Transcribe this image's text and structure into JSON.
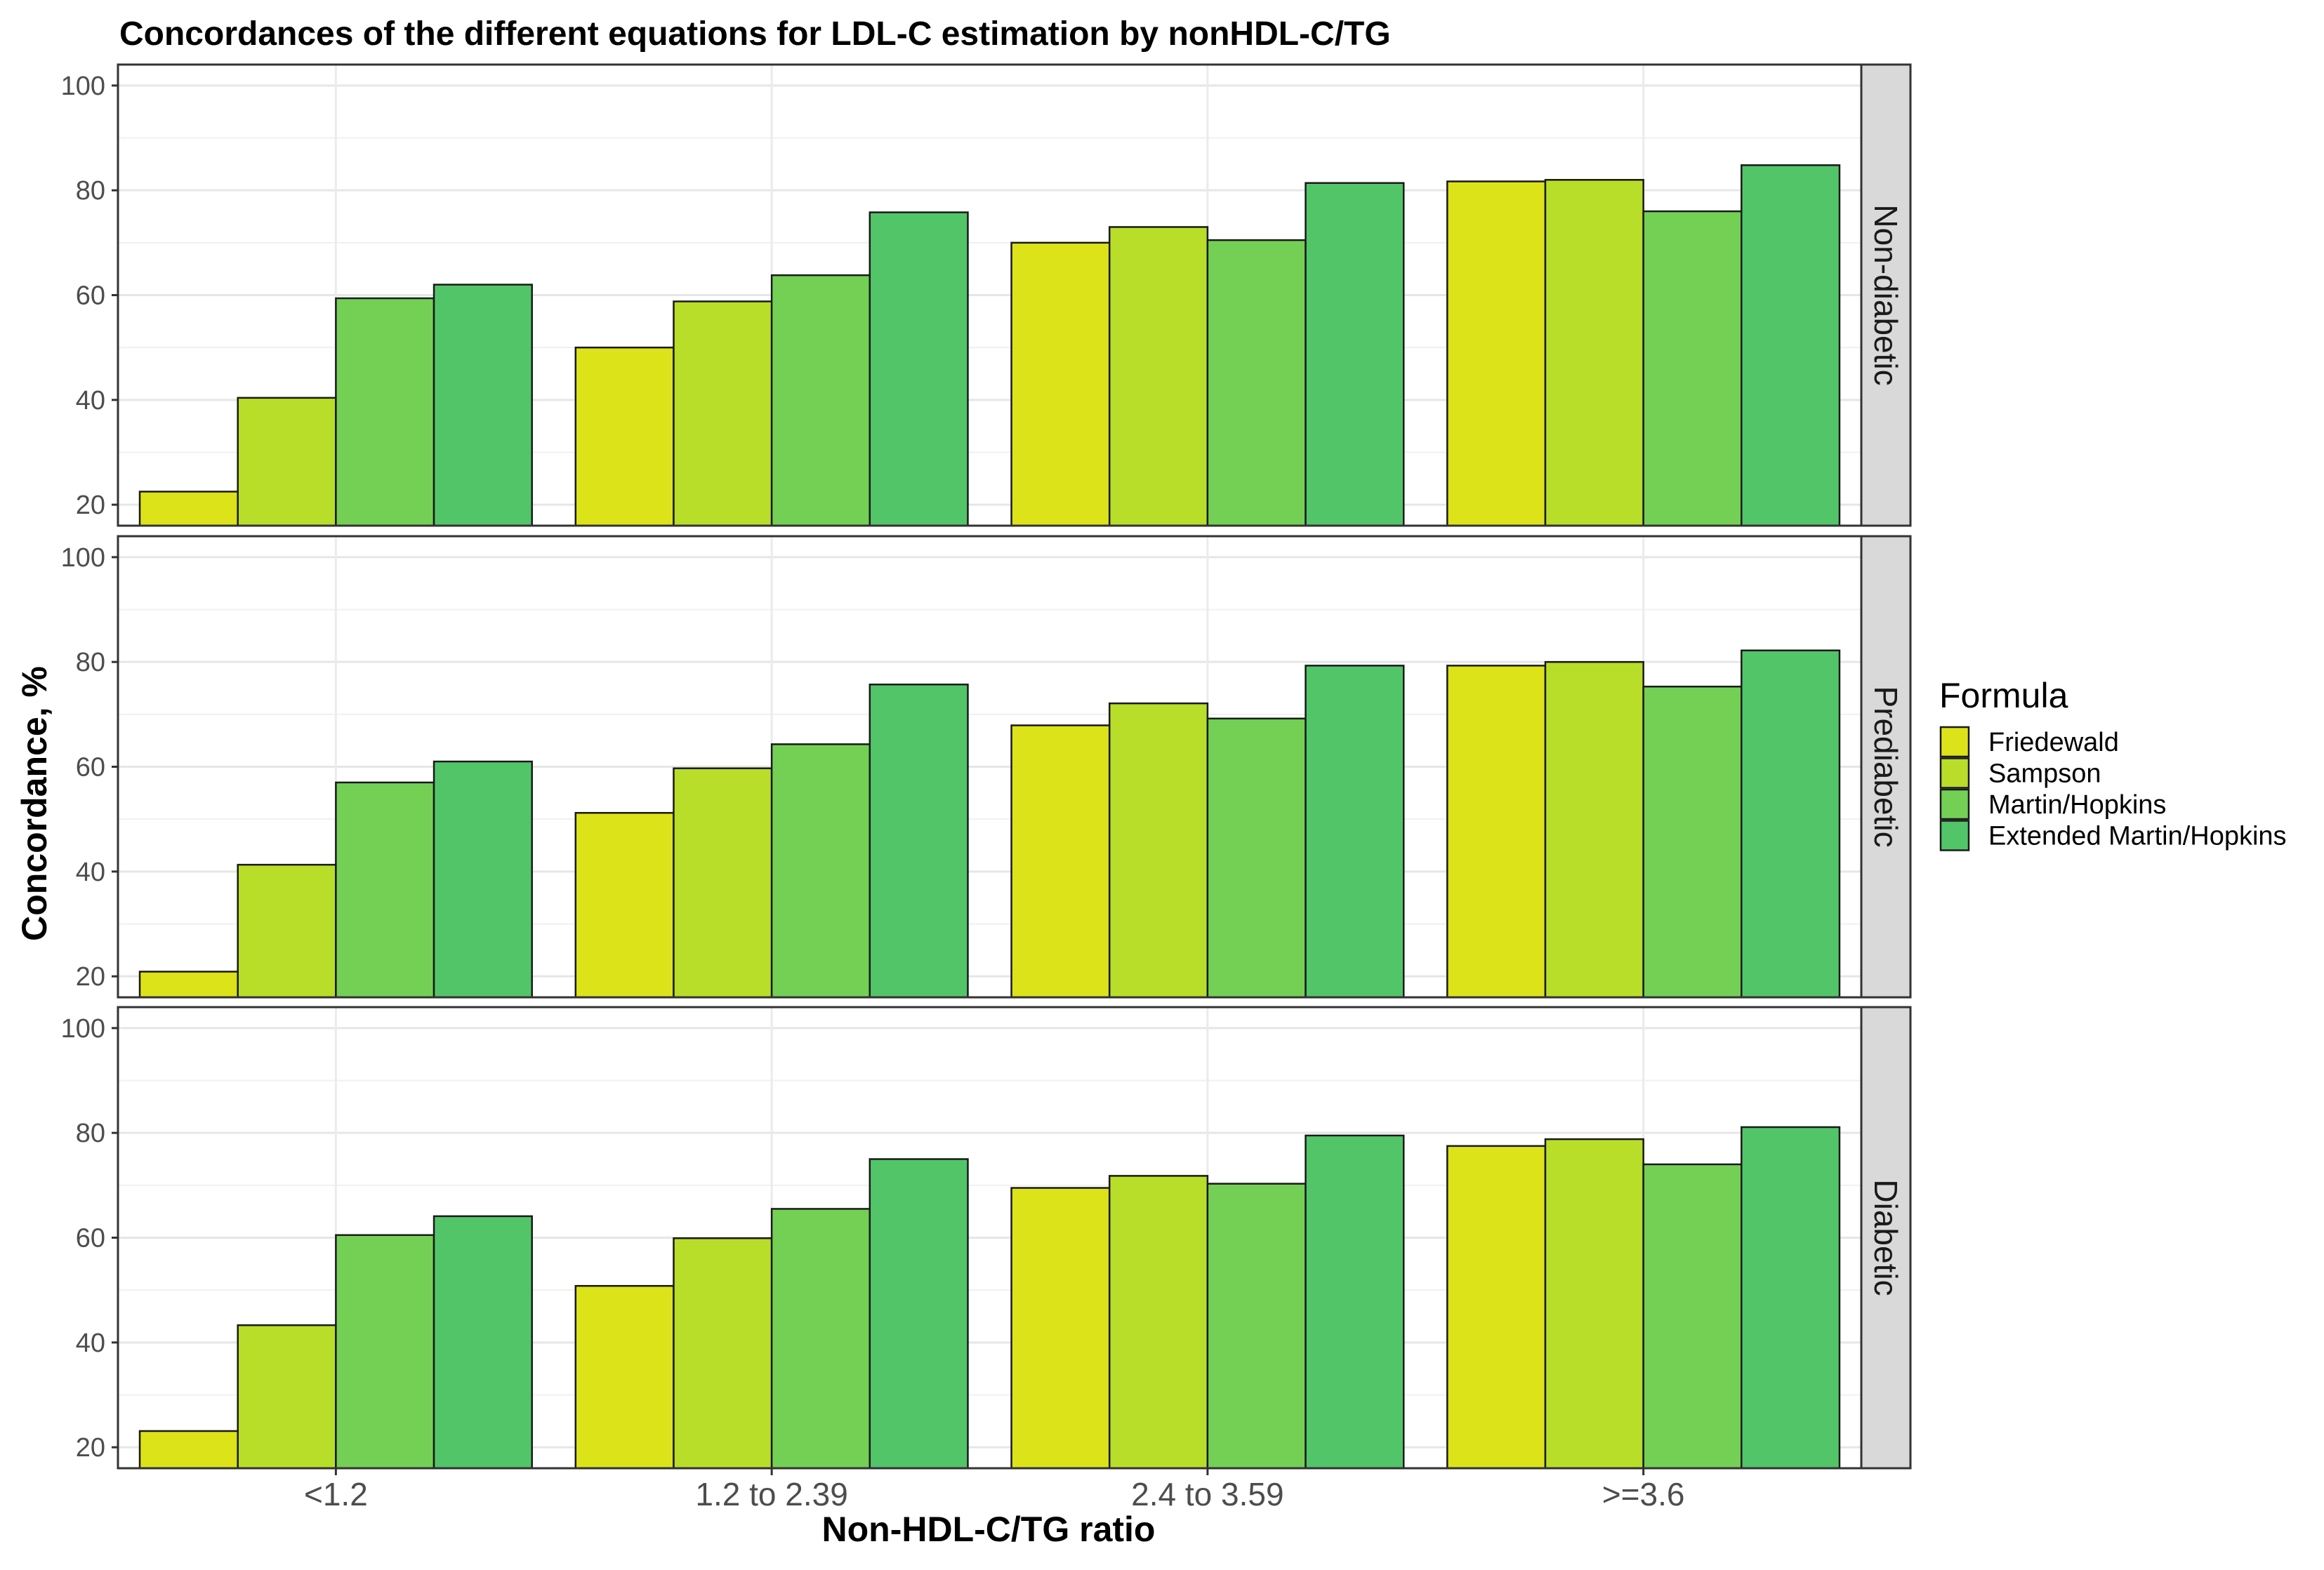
{
  "chart_data": {
    "type": "bar",
    "title": "Concordances of the different equations for LDL-C estimation by nonHDL-C/TG",
    "xlabel": "Non-HDL-C/TG ratio",
    "ylabel": "Concordance, %",
    "ylim": [
      16,
      104
    ],
    "yticks": [
      20,
      40,
      60,
      80,
      100
    ],
    "grid": true,
    "categories": [
      "<1.2",
      "1.2 to 2.39",
      "2.4 to 3.59",
      ">=3.6"
    ],
    "legend": {
      "title": "Formula",
      "position": "right",
      "entries": [
        "Friedewald",
        "Sampson",
        "Martin/Hopkins",
        "Extended Martin/Hopkins"
      ]
    },
    "colors": {
      "Friedewald": "#dce319",
      "Sampson": "#b8de29",
      "Martin/Hopkins": "#73d055",
      "Extended Martin/Hopkins": "#52c569"
    },
    "panels": [
      {
        "facet": "Non-diabetic",
        "series": [
          {
            "name": "Friedewald",
            "values": [
              22.5,
              50.0,
              70.0,
              81.7
            ]
          },
          {
            "name": "Sampson",
            "values": [
              40.4,
              58.8,
              73.0,
              82.0
            ]
          },
          {
            "name": "Martin/Hopkins",
            "values": [
              59.4,
              63.8,
              70.5,
              76.0
            ]
          },
          {
            "name": "Extended Martin/Hopkins",
            "values": [
              62.0,
              75.8,
              81.4,
              84.8
            ]
          }
        ]
      },
      {
        "facet": "Prediabetic",
        "series": [
          {
            "name": "Friedewald",
            "values": [
              20.9,
              51.2,
              67.9,
              79.3
            ]
          },
          {
            "name": "Sampson",
            "values": [
              41.3,
              59.7,
              72.1,
              80.0
            ]
          },
          {
            "name": "Martin/Hopkins",
            "values": [
              57.0,
              64.3,
              69.2,
              75.3
            ]
          },
          {
            "name": "Extended Martin/Hopkins",
            "values": [
              61.0,
              75.7,
              79.3,
              82.2
            ]
          }
        ]
      },
      {
        "facet": "Diabetic",
        "series": [
          {
            "name": "Friedewald",
            "values": [
              23.1,
              50.8,
              69.5,
              77.5
            ]
          },
          {
            "name": "Sampson",
            "values": [
              43.3,
              59.9,
              71.8,
              78.8
            ]
          },
          {
            "name": "Martin/Hopkins",
            "values": [
              60.5,
              65.5,
              70.3,
              74.0
            ]
          },
          {
            "name": "Extended Martin/Hopkins",
            "values": [
              64.1,
              75.0,
              79.5,
              81.1
            ]
          }
        ]
      }
    ]
  }
}
